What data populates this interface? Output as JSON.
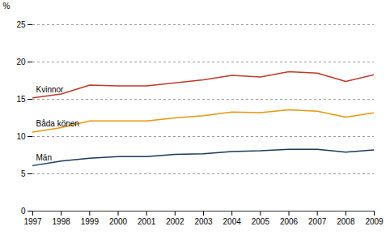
{
  "chart_data": {
    "type": "line",
    "x": [
      1997,
      1998,
      1999,
      2000,
      2001,
      2002,
      2003,
      2004,
      2005,
      2006,
      2007,
      2008,
      2009
    ],
    "xlim": [
      1997,
      2009
    ],
    "xticks": [
      1997,
      1998,
      1999,
      2000,
      2001,
      2002,
      2003,
      2004,
      2005,
      2006,
      2007,
      2008,
      2009
    ],
    "ylabel": "%",
    "ylim": [
      0,
      25
    ],
    "yticks": [
      0,
      5,
      10,
      15,
      20,
      25
    ],
    "grid": true,
    "series": [
      {
        "name": "Kvinnor",
        "color": "#c0392b",
        "values": [
          15.2,
          15.7,
          16.9,
          16.8,
          16.8,
          17.2,
          17.6,
          18.2,
          18.0,
          18.7,
          18.5,
          17.4,
          18.3
        ]
      },
      {
        "name": "Båda könen",
        "color": "#e8960e",
        "values": [
          10.6,
          11.2,
          12.1,
          12.1,
          12.1,
          12.5,
          12.8,
          13.3,
          13.2,
          13.6,
          13.4,
          12.6,
          13.2
        ]
      },
      {
        "name": "Män",
        "color": "#1a3a5c",
        "values": [
          6.1,
          6.7,
          7.1,
          7.3,
          7.3,
          7.6,
          7.7,
          8.0,
          8.1,
          8.3,
          8.3,
          7.9,
          8.2
        ]
      }
    ]
  }
}
